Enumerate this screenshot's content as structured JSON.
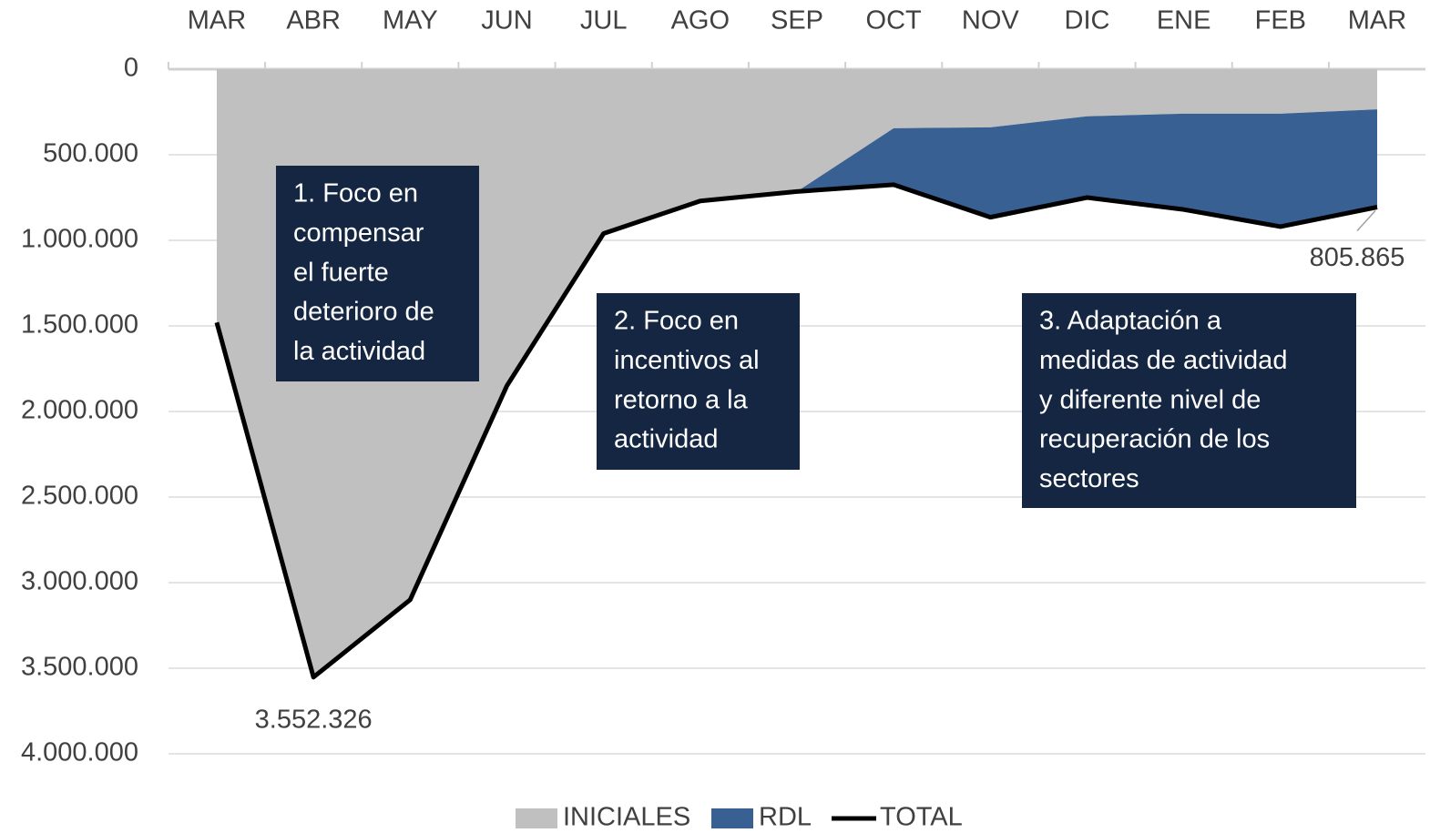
{
  "chart_data": {
    "type": "area",
    "categories": [
      "MAR",
      "ABR",
      "MAY",
      "JUN",
      "JUL",
      "AGO",
      "SEP",
      "OCT",
      "NOV",
      "DIC",
      "ENE",
      "FEB",
      "MAR"
    ],
    "series": [
      {
        "name": "INICIALES",
        "color": "#c0c0c0",
        "stack": true,
        "values": [
          1480000,
          3552326,
          3100000,
          1850000,
          960000,
          770000,
          715000,
          345000,
          340000,
          275000,
          260000,
          260000,
          235000
        ]
      },
      {
        "name": "RDL",
        "color": "#386092",
        "stack": true,
        "values": [
          0,
          0,
          0,
          0,
          0,
          0,
          0,
          330000,
          525000,
          475000,
          560000,
          660000,
          570865
        ]
      },
      {
        "name": "TOTAL",
        "color": "#000000",
        "line": true,
        "values": [
          1480000,
          3552326,
          3100000,
          1850000,
          960000,
          770000,
          715000,
          675000,
          865000,
          750000,
          820000,
          920000,
          805865
        ],
        "value_labels": [
          null,
          "3.552.326",
          null,
          null,
          null,
          null,
          null,
          null,
          null,
          null,
          null,
          null,
          "805.865"
        ]
      }
    ],
    "ylim": [
      0,
      4000000
    ],
    "y_inverted": true,
    "yticks": [
      0,
      {
        "value": 500000,
        "label": "500.000"
      },
      {
        "value": 1000000,
        "label": "1.000.000"
      },
      {
        "value": 1500000,
        "label": "1.500.000"
      },
      {
        "value": 2000000,
        "label": "2.000.000"
      },
      {
        "value": 2500000,
        "label": "2.500.000"
      },
      {
        "value": 3000000,
        "label": "3.000.000"
      },
      {
        "value": 3500000,
        "label": "3.500.000"
      },
      {
        "value": 4000000,
        "label": "4.000.000"
      }
    ],
    "grid": true,
    "legend": "bottom",
    "annotations": [
      {
        "lines": [
          "1. Foco en",
          "compensar",
          "el fuerte",
          "deterioro de",
          "la actividad"
        ]
      },
      {
        "lines": [
          "2. Foco en",
          "incentivos al",
          "retorno a la",
          "actividad"
        ]
      },
      {
        "lines": [
          "3. Adaptación a",
          "medidas de actividad",
          "y diferente nivel de",
          "recuperación de los",
          "sectores"
        ]
      }
    ]
  }
}
